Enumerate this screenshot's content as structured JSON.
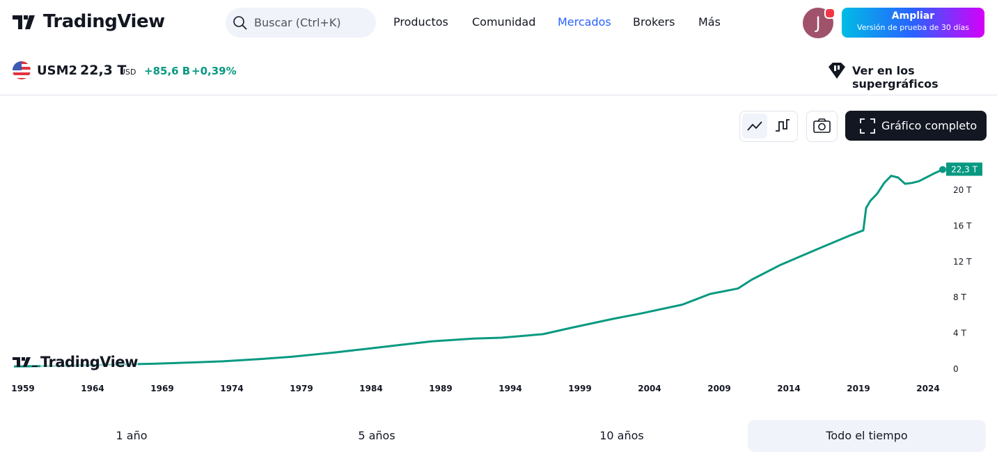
{
  "header": {
    "logo": "TradingView",
    "search": "Buscar (Ctrl+K)",
    "nav": [
      "Productos",
      "Comunidad",
      "Mercados",
      "Brokers",
      "Más"
    ],
    "avatar": "J",
    "upgrade": "Ampliar",
    "upgrade_sub": "Versión de prueba de 30 días"
  },
  "symbol": {
    "name": "USM2",
    "price": "22,3 T",
    "currency": "USD",
    "change": "+85,6 B",
    "change_pct": "+0,39%",
    "supercharts": "Ver en los supergráficos"
  },
  "toolbar": {
    "full_chart": "Gráfico completo"
  },
  "watermark": "TradingView",
  "ranges": [
    "1 año",
    "5 años",
    "10 años",
    "Todo el tiempo"
  ],
  "chart_data": {
    "type": "line",
    "x": [
      1959,
      1962,
      1964,
      1967,
      1969,
      1972,
      1974,
      1977,
      1979,
      1982,
      1984,
      1987,
      1989,
      1992,
      1994,
      1997,
      1999,
      2002,
      2004,
      2007,
      2008,
      2009,
      2011,
      2012,
      2014,
      2017,
      2019,
      2020,
      2020.2,
      2020.5,
      2021,
      2021.5,
      2022,
      2022.5,
      2023,
      2023.5,
      2024,
      2025,
      2025.7
    ],
    "series": [
      {
        "name": "USM2",
        "color": "#089981",
        "values": [
          0.29,
          0.35,
          0.42,
          0.52,
          0.59,
          0.75,
          0.86,
          1.15,
          1.38,
          1.85,
          2.2,
          2.75,
          3.1,
          3.4,
          3.5,
          3.9,
          4.6,
          5.6,
          6.2,
          7.2,
          7.8,
          8.4,
          9.0,
          10.0,
          11.6,
          13.6,
          14.9,
          15.5,
          18.0,
          18.8,
          19.6,
          20.8,
          21.6,
          21.4,
          20.7,
          20.8,
          21.0,
          21.8,
          22.3
        ],
        "value_labels": [
          null,
          null,
          null,
          null,
          null,
          null,
          null,
          null,
          null,
          null,
          null,
          null,
          null,
          null,
          null,
          null,
          null,
          null,
          null,
          null,
          null,
          null,
          null,
          null,
          null,
          null,
          null,
          null,
          null,
          null,
          null,
          null,
          null,
          null,
          null,
          null,
          null,
          null,
          "22,3 T"
        ]
      }
    ],
    "xlim": [
      1958,
      2026
    ],
    "xticks": [
      1959,
      1964,
      1969,
      1974,
      1979,
      1984,
      1989,
      1994,
      1999,
      2004,
      2009,
      2014,
      2019,
      2024
    ],
    "ylim": [
      -1,
      25
    ],
    "yticks": [
      0,
      {
        "value": 4,
        "label": "4 T"
      },
      {
        "value": 8,
        "label": "8 T"
      },
      {
        "value": 12,
        "label": "12 T"
      },
      {
        "value": 16,
        "label": "16 T"
      },
      {
        "value": 20,
        "label": "20 T"
      }
    ],
    "grid": false
  }
}
